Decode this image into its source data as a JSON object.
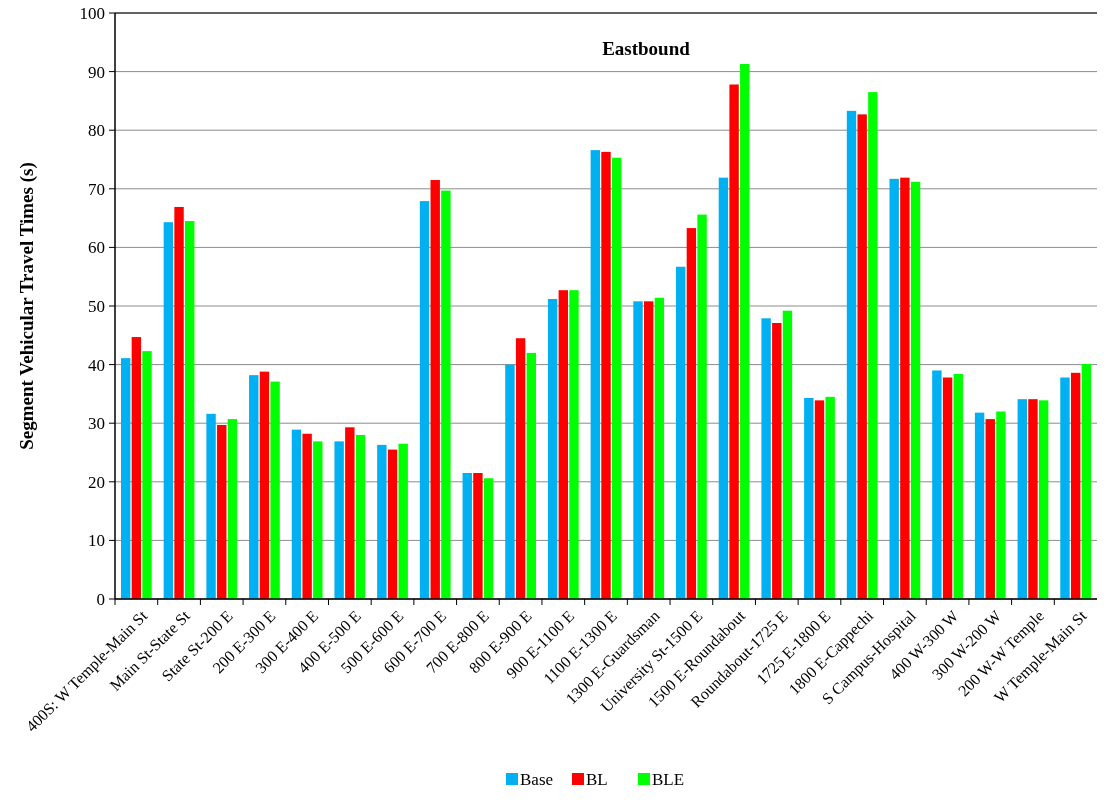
{
  "chart_data": {
    "type": "bar",
    "title": "Eastbound",
    "ylabel": "Segment Vehicular Travel Times (s)",
    "categories": [
      "400S: W Temple-Main St",
      "Main St-State St",
      "State St-200 E",
      "200 E-300 E",
      "300 E-400 E",
      "400 E-500 E",
      "500 E-600 E",
      "600 E-700 E",
      "700 E-800 E",
      "800 E-900 E",
      "900 E-1100 E",
      "1100 E-1300 E",
      "1300 E-Guardsman",
      "University St-1500 E",
      "1500 E-Roundabout",
      "Roundabout-1725 E",
      "1725 E-1800 E",
      "1800 E-Cappechi",
      "S Campus-Hospital",
      "400 W-300 W",
      "300 W-200 W",
      "200 W-W Temple",
      "W Temple-Main St"
    ],
    "series": [
      {
        "name": "Base",
        "color": "#00b0f0",
        "values": [
          41.1,
          64.3,
          31.6,
          38.2,
          28.9,
          26.9,
          26.3,
          67.9,
          21.5,
          40.0,
          51.2,
          76.6,
          50.8,
          56.7,
          71.9,
          47.9,
          34.3,
          83.3,
          71.7,
          39.0,
          31.8,
          34.1,
          37.8
        ]
      },
      {
        "name": "BL",
        "color": "#ff0000",
        "values": [
          44.7,
          66.9,
          29.7,
          38.8,
          28.2,
          29.3,
          25.5,
          71.5,
          21.5,
          44.5,
          52.7,
          76.3,
          50.8,
          63.3,
          87.8,
          47.1,
          33.9,
          82.7,
          71.9,
          37.8,
          30.7,
          34.1,
          38.6
        ]
      },
      {
        "name": "BLE",
        "color": "#00ff00",
        "values": [
          42.3,
          64.5,
          30.7,
          37.1,
          26.9,
          28.0,
          26.5,
          69.7,
          20.6,
          42.0,
          52.7,
          75.3,
          51.4,
          65.6,
          91.3,
          49.2,
          34.5,
          86.5,
          71.2,
          38.4,
          32.0,
          33.9,
          40.1
        ]
      }
    ],
    "ylim": [
      0,
      100
    ],
    "yticks": [
      0,
      10,
      20,
      30,
      40,
      50,
      60,
      70,
      80,
      90,
      100
    ],
    "grid": "y",
    "legend": "bottom"
  }
}
